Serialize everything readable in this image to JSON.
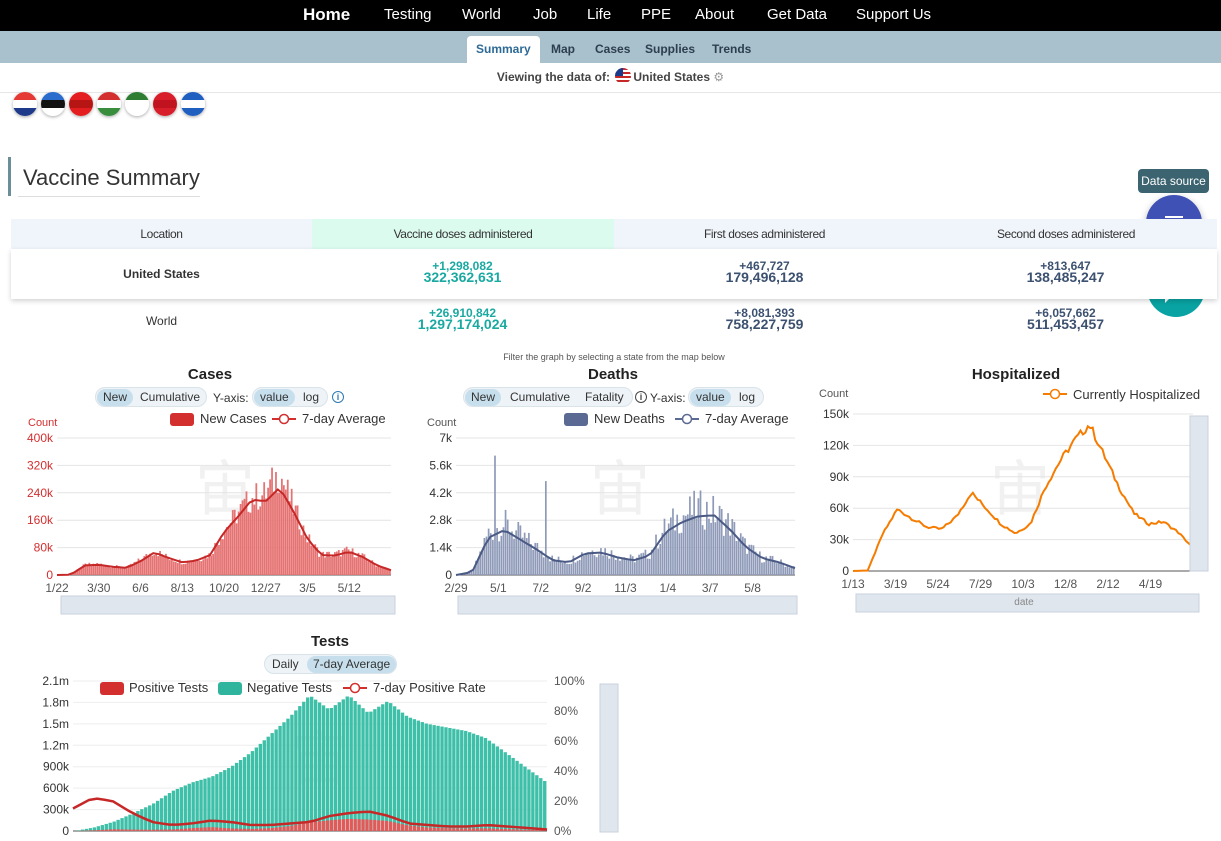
{
  "topnav": {
    "home": "Home",
    "items": [
      "Testing",
      "World",
      "Job",
      "Life",
      "PPE",
      "About",
      "Get Data",
      "Support Us"
    ]
  },
  "subnav": {
    "tabs": [
      "Summary",
      "Map",
      "Cases",
      "Supplies",
      "Trends"
    ],
    "active": "Summary"
  },
  "viewing": {
    "label": "Viewing the data of:",
    "country": "United States"
  },
  "flags": [
    {
      "name": "croatia-flag-icon",
      "colors": [
        "#e53935",
        "#ffffff",
        "#1e3a8a"
      ]
    },
    {
      "name": "estonia-flag-icon",
      "colors": [
        "#2a6dcc",
        "#111111",
        "#ffffff"
      ]
    },
    {
      "name": "albania-flag-icon",
      "colors": [
        "#e41e20",
        "#b71414",
        "#e41e20"
      ]
    },
    {
      "name": "hungary-flag-icon",
      "colors": [
        "#d32f2f",
        "#ffffff",
        "#388e3c"
      ]
    },
    {
      "name": "algeria-flag-icon",
      "colors": [
        "#2e7d32",
        "#ffffff",
        "#ffffff"
      ]
    },
    {
      "name": "morocco-flag-icon",
      "colors": [
        "#d81e2a",
        "#c1121f",
        "#d81e2a"
      ]
    },
    {
      "name": "greece-flag-icon",
      "colors": [
        "#1e5fbf",
        "#ffffff",
        "#1e5fbf"
      ]
    }
  ],
  "vaccine": {
    "title": "Vaccine Summary",
    "data_source": "Data source",
    "headers": [
      "Location",
      "Vaccine doses administered",
      "First doses administered",
      "Second doses administered"
    ],
    "rows": [
      {
        "location": "United States",
        "doses_delta": "+1,298,082",
        "doses": "322,362,631",
        "first_delta": "+467,727",
        "first": "179,496,128",
        "second_delta": "+813,647",
        "second": "138,485,247"
      },
      {
        "location": "World",
        "doses_delta": "+26,910,842",
        "doses": "1,297,174,024",
        "first_delta": "+8,081,393",
        "first": "758,227,759",
        "second_delta": "+6,057,662",
        "second": "511,453,457"
      }
    ]
  },
  "filter_note": "Filter the graph by selecting a state from the map below",
  "cases": {
    "title": "Cases",
    "toggles": [
      "New",
      "Cumulative"
    ],
    "yaxis_label": "Y-axis:",
    "scale": [
      "value",
      "log"
    ],
    "legend": [
      "New Cases",
      "7-day Average"
    ],
    "count": "Count"
  },
  "deaths": {
    "title": "Deaths",
    "toggles": [
      "New",
      "Cumulative",
      "Fatality"
    ],
    "yaxis_label": "Y-axis:",
    "scale": [
      "value",
      "log"
    ],
    "legend": [
      "New Deaths",
      "7-day Average"
    ],
    "count": "Count"
  },
  "hospitalized": {
    "title": "Hospitalized",
    "legend": [
      "Currently Hospitalized"
    ],
    "count": "Count",
    "xlabel": "date"
  },
  "tests": {
    "title": "Tests",
    "toggles": [
      "Daily",
      "7-day Average"
    ],
    "legend": [
      "Positive Tests",
      "Negative Tests",
      "7-day Positive Rate"
    ]
  },
  "chart_data": [
    {
      "type": "bar",
      "title": "Cases",
      "ylabel": "Count",
      "ylim": [
        0,
        400000
      ],
      "yticks": [
        "0",
        "80k",
        "160k",
        "240k",
        "320k",
        "400k"
      ],
      "xticks": [
        "1/22",
        "3/30",
        "6/6",
        "8/13",
        "10/20",
        "12/27",
        "3/5",
        "5/12"
      ],
      "series": [
        {
          "name": "New Cases",
          "x": [
            "1/22",
            "3/1",
            "3/30",
            "4/20",
            "5/15",
            "6/6",
            "6/25",
            "7/20",
            "8/13",
            "9/10",
            "10/1",
            "10/20",
            "11/10",
            "12/1",
            "12/15",
            "12/27",
            "1/8",
            "1/20",
            "2/10",
            "3/5",
            "3/25",
            "4/10",
            "4/25",
            "5/12",
            "5/30"
          ],
          "values": [
            0,
            3000,
            30000,
            32000,
            25000,
            22000,
            45000,
            70000,
            50000,
            38000,
            44000,
            60000,
            130000,
            180000,
            225000,
            235000,
            300000,
            200000,
            110000,
            60000,
            60000,
            72000,
            55000,
            30000,
            15000
          ]
        },
        {
          "name": "7-day Average",
          "x": [
            "1/22",
            "3/1",
            "3/30",
            "4/20",
            "5/15",
            "6/6",
            "6/25",
            "7/20",
            "8/13",
            "9/10",
            "10/1",
            "10/20",
            "11/10",
            "12/1",
            "12/15",
            "12/27",
            "1/8",
            "1/20",
            "2/10",
            "3/5",
            "3/25",
            "4/10",
            "4/25",
            "5/12",
            "5/30"
          ],
          "values": [
            0,
            1000,
            28000,
            30000,
            24000,
            21000,
            40000,
            66000,
            50000,
            37000,
            42000,
            58000,
            125000,
            170000,
            220000,
            215000,
            255000,
            185000,
            105000,
            58000,
            57000,
            68000,
            52000,
            28000,
            14000
          ]
        }
      ]
    },
    {
      "type": "bar",
      "title": "Deaths",
      "ylabel": "Count",
      "ylim": [
        0,
        7000
      ],
      "yticks": [
        "0",
        "1.4k",
        "2.8k",
        "4.2k",
        "5.6k",
        "7k"
      ],
      "xticks": [
        "2/29",
        "5/1",
        "7/2",
        "9/2",
        "11/3",
        "1/4",
        "3/7",
        "5/8"
      ],
      "series": [
        {
          "name": "New Deaths",
          "x": [
            "2/29",
            "3/20",
            "4/10",
            "4/20",
            "5/1",
            "5/20",
            "6/10",
            "7/2",
            "7/25",
            "8/15",
            "9/2",
            "10/1",
            "11/3",
            "12/1",
            "12/20",
            "1/4",
            "1/20",
            "2/10",
            "3/7",
            "4/1",
            "5/8",
            "5/30"
          ],
          "values": [
            0,
            200,
            2200,
            2600,
            2000,
            1400,
            800,
            700,
            1200,
            1300,
            1000,
            800,
            1100,
            2400,
            3000,
            3400,
            3200,
            2600,
            1500,
            900,
            700,
            400
          ]
        },
        {
          "name": "7-day Average",
          "x": [
            "2/29",
            "3/20",
            "4/10",
            "4/20",
            "5/1",
            "5/20",
            "6/10",
            "7/2",
            "7/25",
            "8/15",
            "9/2",
            "10/1",
            "11/3",
            "12/1",
            "12/20",
            "1/4",
            "1/20",
            "2/10",
            "3/7",
            "4/1",
            "5/8",
            "5/30"
          ],
          "values": [
            0,
            150,
            1900,
            2300,
            1800,
            1300,
            750,
            650,
            1100,
            1150,
            900,
            750,
            1000,
            2200,
            2700,
            3000,
            3050,
            2300,
            1400,
            850,
            650,
            350
          ]
        }
      ]
    },
    {
      "type": "line",
      "title": "Hospitalized",
      "ylabel": "Count",
      "xlabel": "date",
      "ylim": [
        0,
        150000
      ],
      "yticks": [
        "0",
        "30k",
        "60k",
        "90k",
        "120k",
        "150k"
      ],
      "xticks": [
        "1/13",
        "3/19",
        "5/24",
        "7/29",
        "10/3",
        "12/8",
        "2/12",
        "4/19"
      ],
      "series": [
        {
          "name": "Currently Hospitalized",
          "x": [
            "1/13",
            "3/19",
            "4/5",
            "4/20",
            "5/10",
            "5/24",
            "6/15",
            "7/10",
            "7/29",
            "8/20",
            "9/10",
            "10/3",
            "10/25",
            "11/15",
            "12/8",
            "12/25",
            "1/10",
            "1/25",
            "2/12",
            "3/10",
            "4/1",
            "4/19",
            "5/10",
            "6/1"
          ],
          "values": [
            0,
            500,
            35000,
            59000,
            50000,
            42000,
            40000,
            52000,
            75000,
            60000,
            45000,
            36000,
            45000,
            80000,
            105000,
            125000,
            140000,
            110000,
            80000,
            55000,
            45000,
            47000,
            37000,
            22000
          ]
        }
      ]
    },
    {
      "type": "area",
      "title": "Tests",
      "ylim": [
        0,
        2100000
      ],
      "yticks": [
        "0",
        "300k",
        "600k",
        "900k",
        "1.2m",
        "1.5m",
        "1.8m",
        "2.1m"
      ],
      "y2ticks": [
        "0%",
        "20%",
        "40%",
        "60%",
        "80%",
        "100%"
      ],
      "series": [
        {
          "name": "Negative Tests",
          "values": [
            0,
            50000,
            130000,
            250000,
            380000,
            560000,
            680000,
            760000,
            900000,
            1100000,
            1350000,
            1600000,
            1900000,
            1700000,
            1900000,
            1650000,
            1820000,
            1600000,
            1500000,
            1450000,
            1400000,
            1300000,
            1100000,
            900000,
            700000
          ]
        },
        {
          "name": "Positive Tests",
          "values": [
            0,
            10000,
            25000,
            20000,
            18000,
            22000,
            40000,
            55000,
            35000,
            30000,
            40000,
            70000,
            120000,
            150000,
            170000,
            160000,
            140000,
            80000,
            50000,
            40000,
            35000,
            38000,
            28000,
            18000,
            10000
          ]
        },
        {
          "name": "7-day Positive Rate",
          "values_pct": [
            15,
            22,
            20,
            12,
            6,
            4,
            5,
            7,
            6,
            4,
            4,
            5,
            6,
            10,
            12,
            13,
            10,
            5,
            4,
            3,
            3,
            4,
            3,
            2,
            1
          ]
        }
      ]
    }
  ]
}
